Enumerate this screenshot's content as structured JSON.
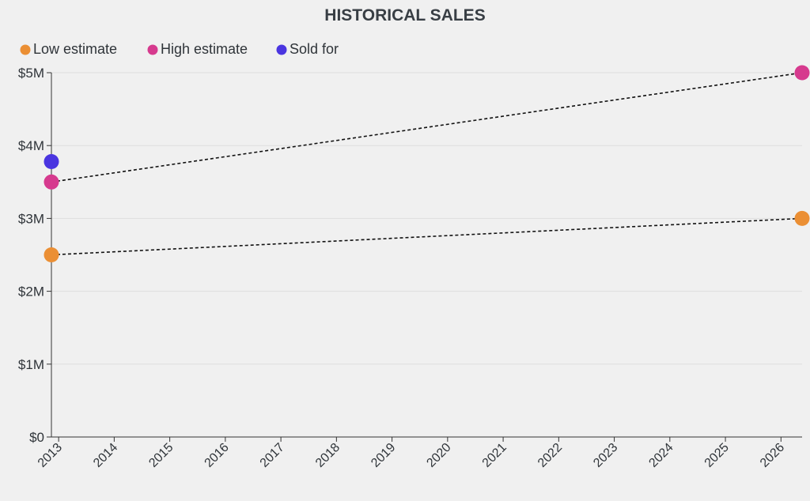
{
  "chart_data": {
    "type": "scatter",
    "title": "HISTORICAL SALES",
    "xlabel": "",
    "ylabel": "",
    "x_ticks": [
      "2013",
      "2014",
      "2015",
      "2016",
      "2017",
      "2018",
      "2019",
      "2020",
      "2021",
      "2022",
      "2023",
      "2024",
      "2025",
      "2026"
    ],
    "xlim": [
      2012.87,
      2026.38
    ],
    "ylim": [
      0,
      5000000
    ],
    "y_ticks": [
      {
        "value": 0,
        "label": "$0"
      },
      {
        "value": 1000000,
        "label": "$1M"
      },
      {
        "value": 2000000,
        "label": "$2M"
      },
      {
        "value": 3000000,
        "label": "$3M"
      },
      {
        "value": 4000000,
        "label": "$4M"
      },
      {
        "value": 5000000,
        "label": "$5M"
      }
    ],
    "grid": true,
    "legend_position": "top-left",
    "series": [
      {
        "name": "Low estimate",
        "color": "#eb8f34",
        "points": [
          {
            "x": 2012.87,
            "y": 2500000
          },
          {
            "x": 2026.38,
            "y": 3000000
          }
        ]
      },
      {
        "name": "High estimate",
        "color": "#d63a8e",
        "points": [
          {
            "x": 2012.87,
            "y": 3500000
          },
          {
            "x": 2026.38,
            "y": 5000000
          }
        ]
      },
      {
        "name": "Sold for",
        "color": "#4a35e0",
        "points": [
          {
            "x": 2012.87,
            "y": 3780000
          }
        ]
      }
    ],
    "trend_lines": [
      {
        "series": "Low estimate",
        "from": {
          "x": 2012.87,
          "y": 2500000
        },
        "to": {
          "x": 2026.38,
          "y": 3000000
        },
        "style": "dashed",
        "color": "#111111"
      },
      {
        "series": "High estimate",
        "from": {
          "x": 2012.87,
          "y": 3500000
        },
        "to": {
          "x": 2026.38,
          "y": 5000000
        },
        "style": "dashed",
        "color": "#111111"
      }
    ]
  }
}
